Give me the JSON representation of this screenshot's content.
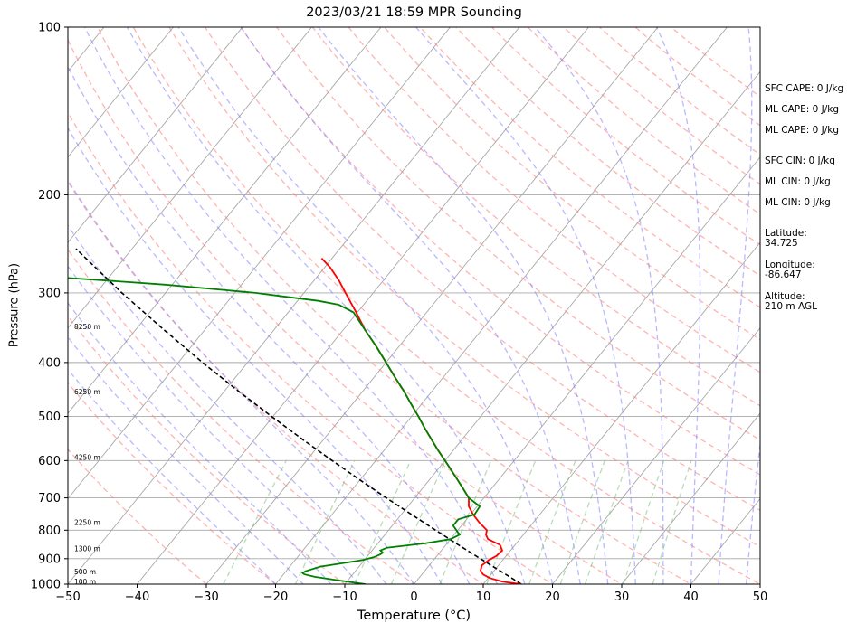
{
  "chart_data": {
    "type": "line",
    "title": "2023/03/21 18:59 MPR Sounding",
    "xlabel": "Temperature (°C)",
    "ylabel": "Pressure (hPa)",
    "xlim": [
      -50,
      50
    ],
    "ylim": [
      1000,
      100
    ],
    "y_scale": "log",
    "grid": true,
    "x_ticks": [
      -50,
      -40,
      -30,
      -20,
      -10,
      0,
      10,
      20,
      30,
      40,
      50
    ],
    "y_ticks": [
      100,
      200,
      300,
      400,
      500,
      600,
      700,
      800,
      900,
      1000
    ],
    "colors": {
      "temperature": "#ff0000",
      "dewpoint": "#008000",
      "parcel": "#000000",
      "dry_adiabat": "#ff8080",
      "moist_adiabat": "#8080ff",
      "mixing_ratio": "#80c080",
      "isotherm": "#a8a8a8"
    },
    "series": [
      {
        "key": "temperature",
        "pressure": [
          1000,
          990,
          975,
          960,
          945,
          925,
          905,
          890,
          870,
          850,
          830,
          815,
          800,
          775,
          750,
          725,
          700,
          675,
          650,
          625,
          600,
          575,
          550,
          525,
          500,
          475,
          450,
          425,
          400,
          375,
          350,
          325,
          300,
          285,
          270,
          260
        ],
        "temperature": [
          15.5,
          12.5,
          10.2,
          8.8,
          8.0,
          7.6,
          8.0,
          8.6,
          8.8,
          7.8,
          5.4,
          4.6,
          4.2,
          2.2,
          0.4,
          -1.2,
          -2.2,
          -4.0,
          -5.9,
          -7.9,
          -10.0,
          -12.2,
          -14.4,
          -16.7,
          -19.0,
          -21.5,
          -24.1,
          -27.0,
          -30.0,
          -33.2,
          -36.8,
          -40.2,
          -44.0,
          -46.4,
          -49.2,
          -51.5
        ]
      },
      {
        "key": "dewpoint",
        "pressure": [
          1000,
          985,
          970,
          960,
          955,
          948,
          930,
          918,
          905,
          895,
          885,
          878,
          870,
          860,
          845,
          830,
          815,
          800,
          785,
          765,
          750,
          725,
          700,
          675,
          650,
          625,
          600,
          575,
          550,
          525,
          500,
          475,
          450,
          425,
          400,
          375,
          350,
          325,
          315,
          310,
          305,
          300,
          290,
          285,
          275
        ],
        "dewpoint": [
          -7.0,
          -11.2,
          -15.2,
          -17.0,
          -17.4,
          -17.2,
          -15.6,
          -13.0,
          -10.2,
          -9.0,
          -8.4,
          -8.2,
          -8.8,
          -8.2,
          -3.2,
          0.0,
          0.8,
          -0.2,
          -1.2,
          -1.2,
          0.6,
          0.4,
          -2.2,
          -4.0,
          -5.9,
          -7.9,
          -10.0,
          -12.2,
          -14.4,
          -16.7,
          -19.0,
          -21.5,
          -24.1,
          -27.0,
          -30.0,
          -33.2,
          -36.8,
          -40.6,
          -43.6,
          -47.0,
          -52.0,
          -57.0,
          -71.0,
          -80.0,
          -100.0
        ]
      },
      {
        "key": "parcel",
        "pressure": [
          1000,
          950,
          900,
          850,
          800,
          750,
          700,
          650,
          600,
          550,
          500,
          450,
          400,
          350,
          300,
          250
        ],
        "temperature": [
          15.5,
          11.2,
          6.6,
          1.8,
          -3.2,
          -8.5,
          -14.1,
          -20.0,
          -26.3,
          -33.0,
          -40.2,
          -48.0,
          -56.5,
          -65.8,
          -76.3,
          -88.1
        ]
      }
    ],
    "height_labels": [
      {
        "label": "100 m",
        "pressure": 990
      },
      {
        "label": "500 m",
        "pressure": 950
      },
      {
        "label": "1300 m",
        "pressure": 865
      },
      {
        "label": "2250 m",
        "pressure": 775
      },
      {
        "label": "4250 m",
        "pressure": 592
      },
      {
        "label": "6250 m",
        "pressure": 452
      },
      {
        "label": "8250 m",
        "pressure": 345
      }
    ],
    "side_text": [
      "SFC CAPE: 0 J/kg",
      "ML CAPE: 0 J/kg",
      "ML CAPE: 0 J/kg",
      "SFC CIN: 0 J/kg",
      "ML CIN: 0 J/kg",
      "ML CIN: 0 J/kg",
      "Latitude:\n34.725",
      "Longitude:\n-86.647",
      "Altitude:\n210 m AGL"
    ]
  }
}
